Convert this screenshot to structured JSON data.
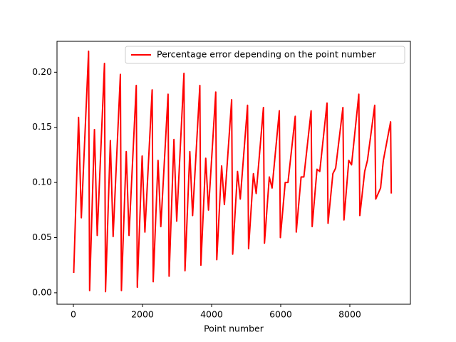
{
  "chart_data": {
    "type": "line",
    "xlabel": "Point number",
    "x": [
      10,
      150,
      230,
      440,
      470,
      610,
      690,
      900,
      930,
      1070,
      1150,
      1360,
      1390,
      1530,
      1610,
      1820,
      1850,
      1990,
      2070,
      2280,
      2310,
      2450,
      2530,
      2740,
      2770,
      2910,
      2990,
      3200,
      3230,
      3370,
      3450,
      3660,
      3690,
      3830,
      3910,
      4120,
      4150,
      4290,
      4370,
      4580,
      4610,
      4750,
      4830,
      5040,
      5070,
      5210,
      5290,
      5500,
      5530,
      5670,
      5750,
      5960,
      5990,
      6130,
      6210,
      6420,
      6450,
      6590,
      6670,
      6880,
      6910,
      7050,
      7130,
      7340,
      7370,
      7510,
      7590,
      7800,
      7830,
      7970,
      8050,
      8260,
      8290,
      8430,
      8510,
      8720,
      8750,
      8890,
      8970,
      9180,
      9200
    ],
    "series": [
      {
        "name": "Percentage error depending on the point number",
        "color": "#ff0000",
        "values": [
          0.018,
          0.159,
          0.068,
          0.219,
          0.002,
          0.148,
          0.052,
          0.208,
          0.001,
          0.138,
          0.051,
          0.198,
          0.002,
          0.128,
          0.052,
          0.188,
          0.005,
          0.124,
          0.055,
          0.184,
          0.01,
          0.12,
          0.06,
          0.18,
          0.015,
          0.139,
          0.065,
          0.199,
          0.02,
          0.128,
          0.07,
          0.188,
          0.025,
          0.122,
          0.075,
          0.182,
          0.03,
          0.115,
          0.08,
          0.175,
          0.035,
          0.11,
          0.085,
          0.17,
          0.04,
          0.108,
          0.09,
          0.168,
          0.045,
          0.105,
          0.095,
          0.165,
          0.05,
          0.1,
          0.1,
          0.16,
          0.055,
          0.105,
          0.105,
          0.165,
          0.06,
          0.112,
          0.11,
          0.172,
          0.063,
          0.108,
          0.113,
          0.168,
          0.066,
          0.12,
          0.116,
          0.18,
          0.07,
          0.11,
          0.12,
          0.17,
          0.085,
          0.095,
          0.12,
          0.155,
          0.09
        ]
      }
    ],
    "xlim": [
      -474,
      9753
    ],
    "ylim": [
      -0.0104,
      0.228
    ],
    "xticks": [
      0,
      2000,
      4000,
      6000,
      8000
    ],
    "yticks": [
      {
        "value": 0,
        "label": "0.00"
      },
      0.05,
      {
        "value": 0.1,
        "label": "0.10"
      },
      0.15,
      {
        "value": 0.2,
        "label": "0.20"
      }
    ],
    "legend": "upper right"
  }
}
